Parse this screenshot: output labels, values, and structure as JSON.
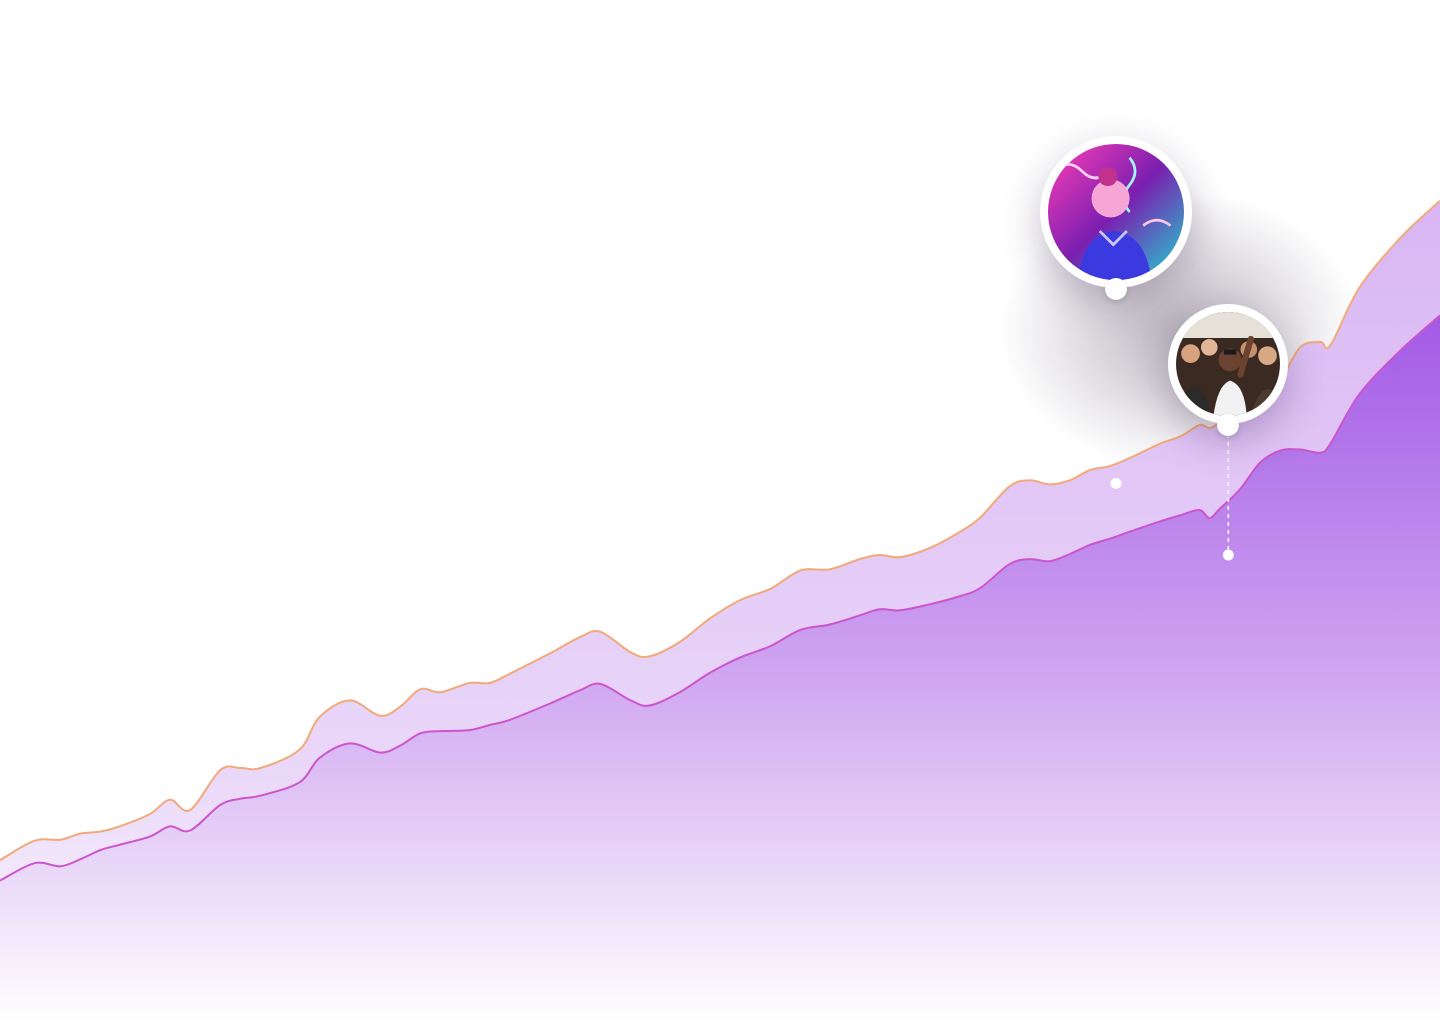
{
  "chart_data": {
    "type": "area",
    "xlim": [
      0,
      100
    ],
    "ylim": [
      0,
      100
    ],
    "grid": false,
    "legend": "none",
    "series": [
      {
        "color": "#e7d3f7",
        "stroke": "#f2a97a",
        "x": [
          0,
          2.4,
          4.2,
          5.6,
          7.0,
          8.3,
          10.4,
          11.8,
          13.2,
          15.3,
          16.7,
          18.1,
          20.8,
          22.2,
          24.3,
          26.4,
          27.8,
          29.2,
          30.6,
          32.6,
          34.0,
          35.4,
          38.2,
          40.3,
          41.7,
          43.8,
          45.1,
          47.2,
          49.3,
          51.4,
          53.5,
          55.6,
          57.6,
          59.7,
          61.1,
          62.5,
          64.6,
          66.7,
          68.1,
          70.1,
          71.5,
          72.9,
          74.3,
          75.7,
          77.1,
          78.5,
          80.6,
          82.0,
          83.3,
          84.0,
          84.7,
          86.1,
          87.5,
          88.9,
          90.3,
          91.7,
          92.4,
          94.4,
          97.2,
          100
        ],
        "y": [
          16.0,
          17.9,
          18.0,
          18.6,
          18.8,
          19.3,
          20.5,
          21.9,
          20.9,
          24.8,
          25.0,
          25.0,
          26.8,
          30.0,
          31.6,
          30.1,
          31.0,
          32.7,
          32.4,
          33.3,
          33.3,
          34.2,
          36.2,
          37.8,
          38.3,
          36.3,
          35.9,
          37.3,
          39.6,
          41.4,
          42.5,
          44.3,
          44.4,
          45.4,
          45.8,
          45.6,
          46.5,
          48.1,
          49.5,
          52.5,
          53.1,
          52.7,
          53.1,
          54.1,
          54.5,
          55.3,
          56.7,
          57.4,
          58.5,
          58.2,
          58.7,
          59.7,
          60.8,
          62.8,
          66.1,
          66.6,
          66.3,
          71.9,
          76.7,
          80.4
        ]
      },
      {
        "color": "#b972e8",
        "stroke": "#cc55cc",
        "x": [
          0,
          2.4,
          4.2,
          5.6,
          7.0,
          8.3,
          10.4,
          11.8,
          13.2,
          15.3,
          16.7,
          18.1,
          20.8,
          22.2,
          24.3,
          26.4,
          27.8,
          29.2,
          30.6,
          32.6,
          34.0,
          35.4,
          38.2,
          40.3,
          41.7,
          43.8,
          45.1,
          47.2,
          49.3,
          51.4,
          53.5,
          55.6,
          57.6,
          59.7,
          61.1,
          62.5,
          64.6,
          66.7,
          68.1,
          70.1,
          71.5,
          72.9,
          74.3,
          75.7,
          77.1,
          78.5,
          80.6,
          82.0,
          83.3,
          84.0,
          84.7,
          86.1,
          87.5,
          88.9,
          90.3,
          91.7,
          92.4,
          94.4,
          97.2,
          100
        ],
        "y": [
          14.0,
          15.7,
          15.4,
          16.1,
          17.0,
          17.5,
          18.3,
          19.3,
          18.9,
          21.4,
          22.0,
          22.3,
          23.6,
          26.0,
          27.4,
          26.5,
          27.2,
          28.4,
          28.6,
          28.7,
          29.2,
          29.7,
          31.3,
          32.6,
          33.2,
          31.6,
          31.1,
          32.4,
          34.3,
          35.8,
          36.9,
          38.5,
          39.0,
          39.9,
          40.5,
          40.4,
          41.0,
          41.8,
          42.6,
          44.9,
          45.4,
          45.2,
          45.9,
          46.8,
          47.4,
          48.1,
          49.1,
          49.7,
          50.2,
          49.4,
          50.3,
          52.2,
          54.8,
          56.0,
          56.1,
          55.8,
          56.7,
          61.5,
          65.7,
          69.2
        ]
      }
    ],
    "markers": [
      {
        "series": 0,
        "x": 77.5,
        "y": 52.8,
        "photo": "neon-portrait"
      },
      {
        "series": 1,
        "x": 85.3,
        "y": 45.8,
        "photo": "concert-crowd"
      }
    ]
  }
}
